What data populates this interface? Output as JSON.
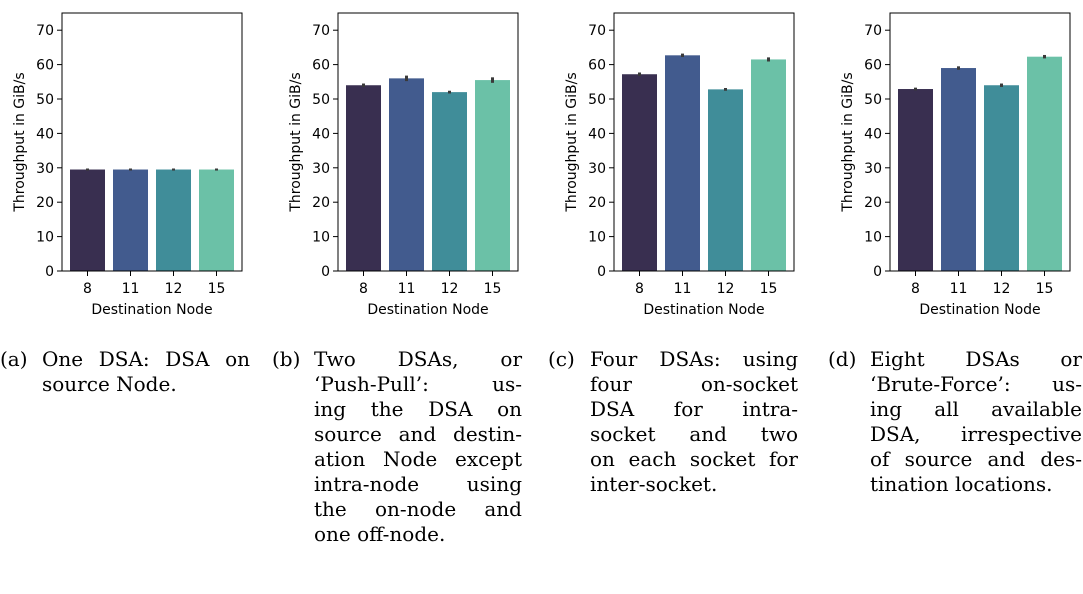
{
  "chart_data": [
    {
      "type": "bar",
      "categories": [
        "8",
        "11",
        "12",
        "15"
      ],
      "values": [
        29.5,
        29.5,
        29.5,
        29.5
      ],
      "errors": [
        0.3,
        0.3,
        0.3,
        0.3
      ],
      "xlabel": "Destination Node",
      "ylabel": "Throughput in GiB/s",
      "ylim": [
        0,
        75
      ],
      "yticks": [
        0,
        10,
        20,
        30,
        40,
        50,
        60,
        70
      ],
      "colors": [
        "#392f50",
        "#425b8e",
        "#408d99",
        "#6bc1a7"
      ],
      "grid": false
    },
    {
      "type": "bar",
      "categories": [
        "8",
        "11",
        "12",
        "15"
      ],
      "values": [
        54.0,
        56.0,
        52.0,
        55.5
      ],
      "errors": [
        0.5,
        0.8,
        0.4,
        0.8
      ],
      "xlabel": "Destination Node",
      "ylabel": "Throughput in GiB/s",
      "ylim": [
        0,
        75
      ],
      "yticks": [
        0,
        10,
        20,
        30,
        40,
        50,
        60,
        70
      ],
      "colors": [
        "#392f50",
        "#425b8e",
        "#408d99",
        "#6bc1a7"
      ],
      "grid": false
    },
    {
      "type": "bar",
      "categories": [
        "8",
        "11",
        "12",
        "15"
      ],
      "values": [
        57.2,
        62.7,
        52.8,
        61.5
      ],
      "errors": [
        0.5,
        0.5,
        0.4,
        0.6
      ],
      "xlabel": "Destination Node",
      "ylabel": "Throughput in GiB/s",
      "ylim": [
        0,
        75
      ],
      "yticks": [
        0,
        10,
        20,
        30,
        40,
        50,
        60,
        70
      ],
      "colors": [
        "#392f50",
        "#425b8e",
        "#408d99",
        "#6bc1a7"
      ],
      "grid": false
    },
    {
      "type": "bar",
      "categories": [
        "8",
        "11",
        "12",
        "15"
      ],
      "values": [
        52.9,
        59.0,
        54.0,
        62.3
      ],
      "errors": [
        0.4,
        0.5,
        0.5,
        0.5
      ],
      "xlabel": "Destination Node",
      "ylabel": "Throughput in GiB/s",
      "ylim": [
        0,
        75
      ],
      "yticks": [
        0,
        10,
        20,
        30,
        40,
        50,
        60,
        70
      ],
      "colors": [
        "#392f50",
        "#425b8e",
        "#408d99",
        "#6bc1a7"
      ],
      "grid": false
    }
  ],
  "captions": [
    {
      "label": "(a)",
      "lines": [
        "One DSA: DSA on",
        "source Node."
      ]
    },
    {
      "label": "(b)",
      "lines": [
        "Two DSAs, or",
        "‘Push-Pull’: us-",
        "ing the DSA on",
        "source and destin-",
        "ation Node except",
        "intra-node using",
        "the on-node and",
        "one off-node."
      ]
    },
    {
      "label": "(c)",
      "lines": [
        "Four DSAs: using",
        "four on-socket",
        "DSA for intra-",
        "socket and two",
        "on each socket for",
        "inter-socket."
      ]
    },
    {
      "label": "(d)",
      "lines": [
        "Eight DSAs or",
        "‘Brute-Force’: us-",
        "ing all available",
        "DSA, irrespective",
        "of source and des-",
        "tination locations."
      ]
    }
  ]
}
